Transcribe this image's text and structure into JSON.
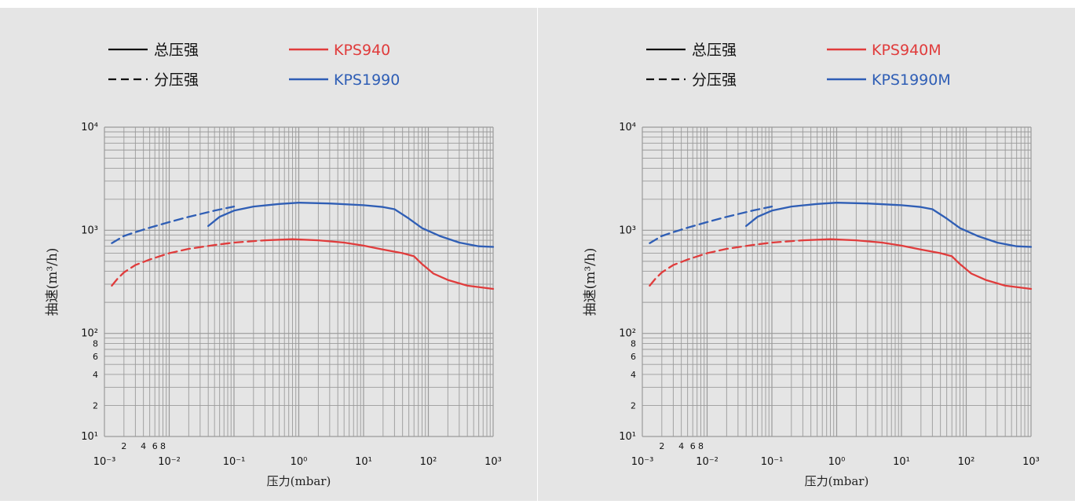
{
  "legend_line_styles": [
    {
      "label": "总压强",
      "style": "solid"
    },
    {
      "label": "分压强",
      "style": "dashed"
    }
  ],
  "colors": {
    "red": "#e03c3c",
    "blue": "#2f5eb5",
    "grid": "#9a9a9a",
    "panel": "#e5e5e5"
  },
  "chart_data": [
    {
      "type": "line",
      "xlabel": "压力(mbar)",
      "ylabel": "抽速(m³/h)",
      "x_scale": "log",
      "y_scale": "log",
      "xlim": [
        0.001,
        1000
      ],
      "ylim": [
        10,
        10000
      ],
      "x_ticks": [
        "10⁻³",
        "10⁻²",
        "10⁻¹",
        "10⁰",
        "10¹",
        "10²",
        "10³"
      ],
      "x_minor_labels": [
        "2",
        "4",
        "6",
        "8"
      ],
      "y_ticks": [
        "10¹",
        "10²",
        "10³",
        "10⁴"
      ],
      "y_minor_labels": [
        "2",
        "4",
        "6",
        "8"
      ],
      "grid": true,
      "legend_position": "top",
      "series": [
        {
          "name": "KPS940",
          "color": "#e03c3c",
          "segments": [
            {
              "style": "dashed",
              "x": [
                0.0013,
                0.0016,
                0.002,
                0.003,
                0.005,
                0.01,
                0.02,
                0.05,
                0.1,
                0.3
              ],
              "y": [
                290,
                340,
                390,
                460,
                520,
                600,
                660,
                720,
                760,
                800
              ]
            },
            {
              "style": "solid",
              "x": [
                0.3,
                0.8,
                2,
                5,
                10,
                20,
                40,
                60,
                80,
                120,
                200,
                400,
                1000
              ],
              "y": [
                800,
                820,
                800,
                760,
                710,
                650,
                600,
                560,
                470,
                380,
                330,
                290,
                270
              ]
            }
          ]
        },
        {
          "name": "KPS1990",
          "color": "#2f5eb5",
          "segments": [
            {
              "style": "dashed",
              "x": [
                0.0013,
                0.002,
                0.003,
                0.005,
                0.01,
                0.02,
                0.05,
                0.1
              ],
              "y": [
                750,
                880,
                960,
                1060,
                1200,
                1350,
                1550,
                1700
              ]
            },
            {
              "style": "solid",
              "x": [
                0.04,
                0.06,
                0.1,
                0.2,
                0.5,
                1,
                3,
                10,
                20,
                30,
                50,
                80,
                150,
                300,
                600,
                1000
              ],
              "y": [
                1100,
                1350,
                1550,
                1700,
                1800,
                1850,
                1820,
                1750,
                1680,
                1600,
                1300,
                1050,
                880,
                760,
                700,
                690
              ]
            }
          ]
        }
      ]
    },
    {
      "type": "line",
      "xlabel": "压力(mbar)",
      "ylabel": "抽速(m³/h)",
      "x_scale": "log",
      "y_scale": "log",
      "xlim": [
        0.001,
        1000
      ],
      "ylim": [
        10,
        10000
      ],
      "x_ticks": [
        "10⁻³",
        "10⁻²",
        "10⁻¹",
        "10⁰",
        "10¹",
        "10²",
        "10³"
      ],
      "x_minor_labels": [
        "2",
        "4",
        "6",
        "8"
      ],
      "y_ticks": [
        "10¹",
        "10²",
        "10³",
        "10⁴"
      ],
      "y_minor_labels": [
        "2",
        "4",
        "6",
        "8"
      ],
      "grid": true,
      "legend_position": "top",
      "series": [
        {
          "name": "KPS940M",
          "color": "#e03c3c",
          "segments": [
            {
              "style": "dashed",
              "x": [
                0.0013,
                0.0016,
                0.002,
                0.003,
                0.005,
                0.01,
                0.02,
                0.05,
                0.1,
                0.3
              ],
              "y": [
                290,
                340,
                390,
                460,
                520,
                600,
                660,
                720,
                760,
                800
              ]
            },
            {
              "style": "solid",
              "x": [
                0.3,
                0.8,
                2,
                5,
                10,
                20,
                40,
                60,
                80,
                120,
                200,
                400,
                1000
              ],
              "y": [
                800,
                820,
                800,
                760,
                710,
                650,
                600,
                560,
                470,
                380,
                330,
                290,
                270
              ]
            }
          ]
        },
        {
          "name": "KPS1990M",
          "color": "#2f5eb5",
          "segments": [
            {
              "style": "dashed",
              "x": [
                0.0013,
                0.002,
                0.003,
                0.005,
                0.01,
                0.02,
                0.05,
                0.1
              ],
              "y": [
                750,
                880,
                960,
                1060,
                1200,
                1350,
                1550,
                1700
              ]
            },
            {
              "style": "solid",
              "x": [
                0.04,
                0.06,
                0.1,
                0.2,
                0.5,
                1,
                3,
                10,
                20,
                30,
                50,
                80,
                150,
                300,
                600,
                1000
              ],
              "y": [
                1100,
                1350,
                1550,
                1700,
                1800,
                1850,
                1820,
                1750,
                1680,
                1600,
                1300,
                1050,
                880,
                760,
                700,
                690
              ]
            }
          ]
        }
      ]
    }
  ]
}
